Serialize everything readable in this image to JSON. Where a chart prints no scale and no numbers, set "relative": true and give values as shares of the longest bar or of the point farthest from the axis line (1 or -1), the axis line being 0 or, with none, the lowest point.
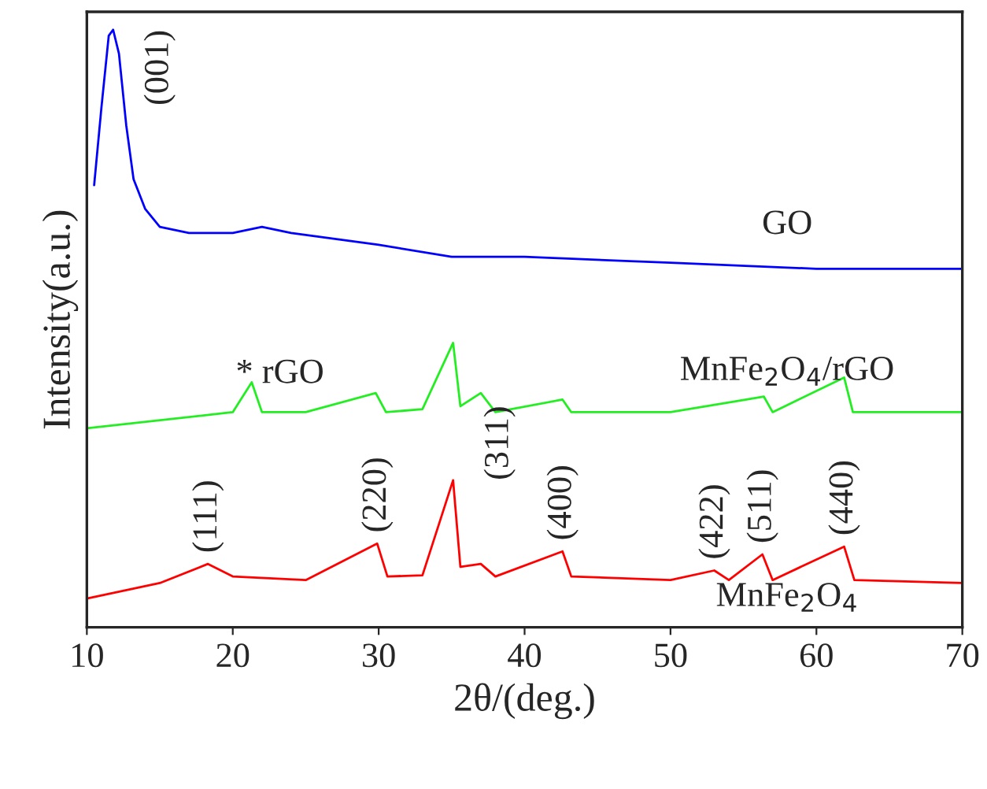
{
  "chart_data": {
    "type": "line",
    "relative": true,
    "xlabel": "2θ/(deg.)",
    "ylabel": "Intensity(a.u.)",
    "xlim": [
      10,
      70
    ],
    "xticks": [
      10,
      20,
      30,
      40,
      50,
      60,
      70
    ],
    "tick_labels": "x",
    "legend": false,
    "grid": false,
    "series": [
      {
        "name": "GO",
        "color": "#0000ff",
        "x": [
          10.5,
          11.0,
          11.5,
          11.8,
          12.2,
          12.7,
          13.2,
          14,
          15,
          17,
          20,
          22,
          24,
          27,
          30,
          35,
          40,
          50,
          60,
          70
        ],
        "values": [
          0.74,
          0.87,
          0.99,
          1.0,
          0.96,
          0.84,
          0.75,
          0.7,
          0.67,
          0.66,
          0.66,
          0.67,
          0.66,
          0.65,
          0.64,
          0.62,
          0.62,
          0.61,
          0.6,
          0.6
        ]
      },
      {
        "name": "MnFe$_{2}$O$_{4}$/rGO",
        "color": "#22ee22",
        "x": [
          10,
          20,
          21.3,
          22,
          25,
          29.8,
          30.5,
          33,
          35.1,
          35.6,
          37,
          38,
          42.6,
          43.2,
          50,
          56.4,
          57,
          61.9,
          62.5,
          70
        ],
        "values": [
          0.333,
          0.36,
          0.41,
          0.36,
          0.36,
          0.392,
          0.36,
          0.365,
          0.476,
          0.37,
          0.392,
          0.36,
          0.381,
          0.36,
          0.36,
          0.386,
          0.36,
          0.418,
          0.36,
          0.36
        ]
      },
      {
        "name": "MnFe$_{2}$O$_{4}$",
        "color": "#ff0000",
        "x": [
          10,
          15,
          18.3,
          20,
          25,
          29.9,
          30.6,
          33,
          35.1,
          35.6,
          37,
          38,
          42.6,
          43.2,
          50,
          53,
          54,
          56.3,
          57,
          61.9,
          62.6,
          70
        ],
        "values": [
          0.048,
          0.074,
          0.106,
          0.085,
          0.079,
          0.14,
          0.085,
          0.087,
          0.246,
          0.101,
          0.106,
          0.085,
          0.127,
          0.085,
          0.079,
          0.095,
          0.079,
          0.122,
          0.079,
          0.135,
          0.079,
          0.074
        ]
      }
    ],
    "annotations": [
      {
        "text": "(001)",
        "x": 11.8,
        "y": 1.0
      },
      {
        "text": "(111)",
        "x": 18.3,
        "y": 0.106
      },
      {
        "text": "(220)",
        "x": 29.9,
        "y": 0.14
      },
      {
        "text": "(311)",
        "x": 35.1,
        "y": 0.246
      },
      {
        "text": "(400)",
        "x": 42.6,
        "y": 0.127
      },
      {
        "text": "(422)",
        "x": 53,
        "y": 0.095
      },
      {
        "text": "(511)",
        "x": 56.3,
        "y": 0.122
      },
      {
        "text": "(440)",
        "x": 61.9,
        "y": 0.135
      },
      "* rGO"
    ]
  }
}
